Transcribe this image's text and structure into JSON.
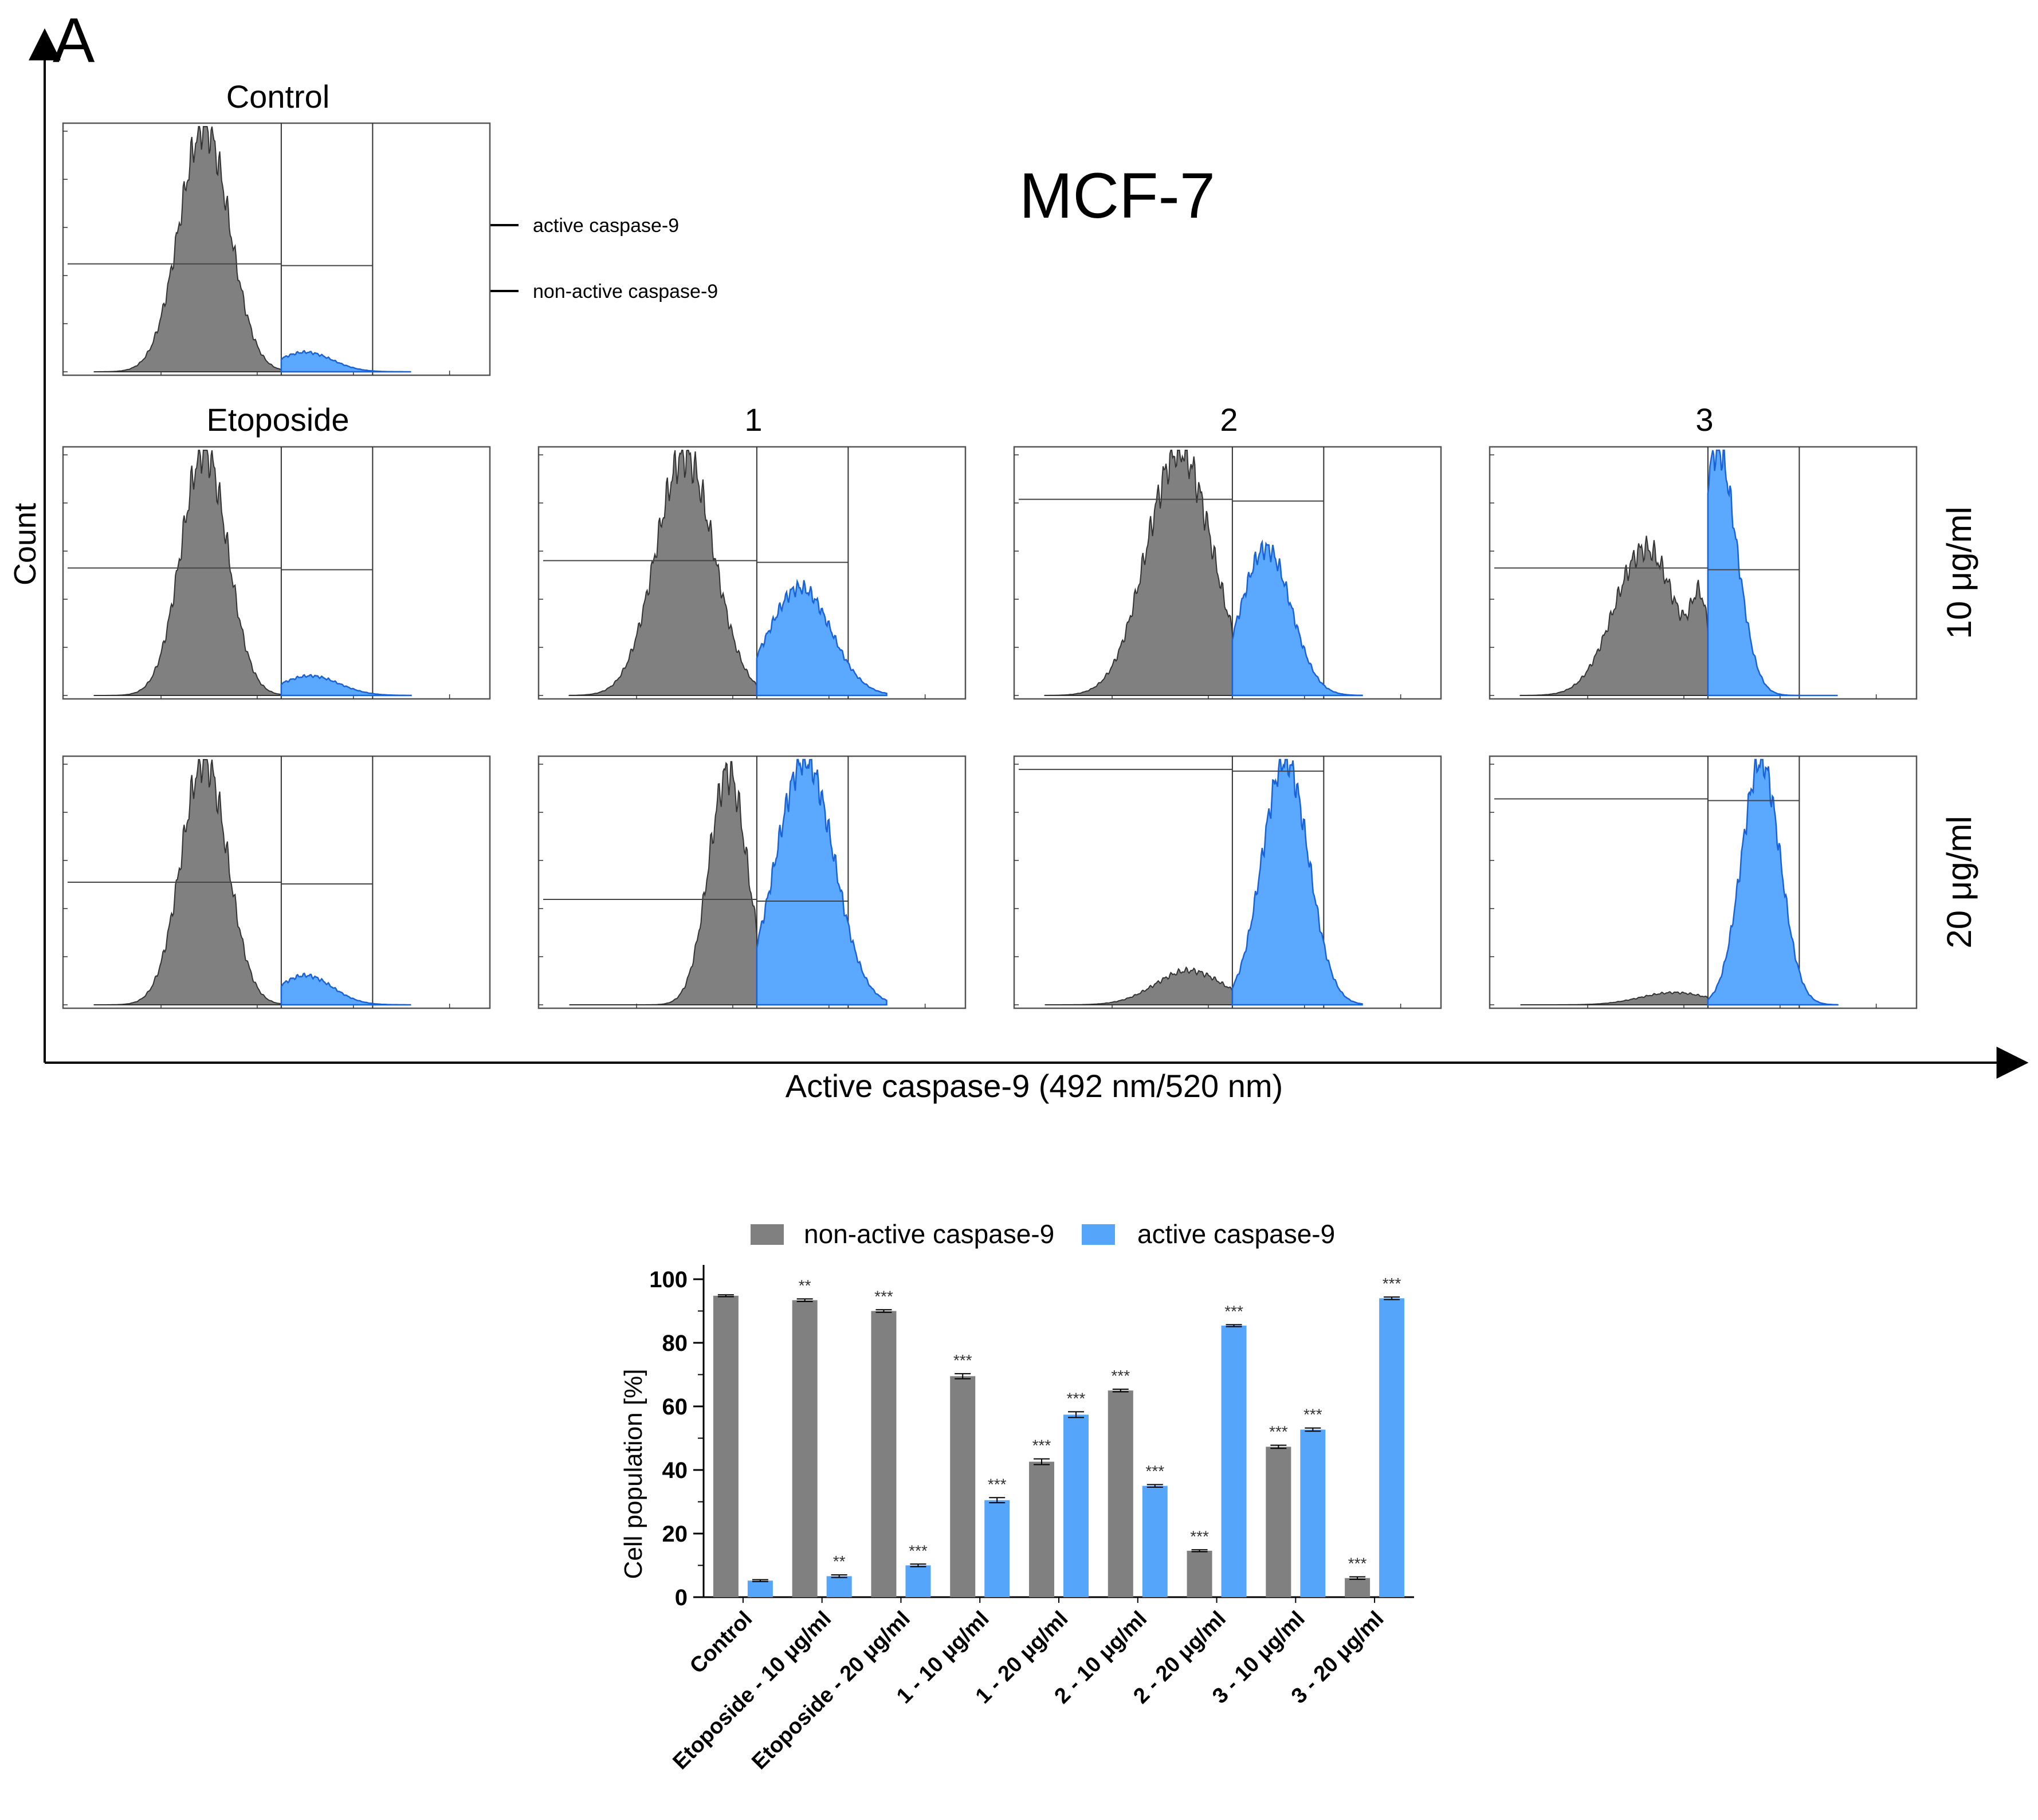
{
  "panel_label": "A",
  "cell_line": "MCF-7",
  "flow": {
    "y_axis_label": "Count",
    "x_axis_label": "Active caspase-9 (492 nm/520 nm)",
    "column_titles": [
      "Control",
      "Etoposide",
      "1",
      "2",
      "3"
    ],
    "row_labels": [
      "10 μg/ml",
      "20 μg/ml"
    ],
    "annotations": {
      "active": "active caspase-9",
      "nonactive": "non-active caspase-9"
    },
    "colors": {
      "negative": "#808080",
      "positive": "#5aa8ff",
      "positive_edge": "#1a63d6"
    },
    "histograms": [
      {
        "id": "control",
        "column": "Control",
        "dose": "",
        "neg_peak_log": 2.35,
        "neg_width": 0.26,
        "neg_height": 1.0,
        "neg_shoulder": 0.0,
        "pos_peak_log": 3.4,
        "pos_width": 0.28,
        "pos_height": 0.08,
        "gate_log": 3.15,
        "marker_level": 0.44
      },
      {
        "id": "etoposide-10",
        "column": "Etoposide",
        "dose": "10 μg/ml",
        "neg_peak_log": 2.35,
        "neg_width": 0.24,
        "neg_height": 1.0,
        "neg_shoulder": 0.0,
        "pos_peak_log": 3.45,
        "pos_width": 0.3,
        "pos_height": 0.08,
        "gate_log": 3.15,
        "marker_level": 0.52
      },
      {
        "id": "etoposide-20",
        "column": "Etoposide",
        "dose": "20 μg/ml",
        "neg_peak_log": 2.35,
        "neg_width": 0.24,
        "neg_height": 1.0,
        "neg_shoulder": 0.0,
        "pos_peak_log": 3.4,
        "pos_width": 0.28,
        "pos_height": 0.12,
        "gate_log": 3.15,
        "marker_level": 0.5
      },
      {
        "id": "cpd1-10",
        "column": "1",
        "dose": "10 μg/ml",
        "neg_peak_log": 2.4,
        "neg_width": 0.3,
        "neg_height": 0.98,
        "neg_shoulder": 0.0,
        "pos_peak_log": 3.6,
        "pos_width": 0.32,
        "pos_height": 0.44,
        "gate_log": 3.15,
        "marker_level": 0.55
      },
      {
        "id": "cpd1-20",
        "column": "1",
        "dose": "20 μg/ml",
        "neg_peak_log": 2.85,
        "neg_width": 0.2,
        "neg_height": 0.95,
        "neg_shoulder": 0.0,
        "pos_peak_log": 3.65,
        "pos_width": 0.3,
        "pos_height": 1.0,
        "gate_log": 3.15,
        "marker_level": 0.43
      },
      {
        "id": "cpd2-10",
        "column": "2",
        "dose": "10 μg/ml",
        "neg_peak_log": 2.6,
        "neg_width": 0.34,
        "neg_height": 1.0,
        "neg_shoulder": 0.0,
        "pos_peak_log": 3.5,
        "pos_width": 0.26,
        "pos_height": 0.6,
        "gate_log": 3.15,
        "marker_level": 0.8
      },
      {
        "id": "cpd2-20",
        "column": "2",
        "dose": "20 μg/ml",
        "neg_peak_log": 2.7,
        "neg_width": 0.35,
        "neg_height": 0.14,
        "neg_shoulder": 0.0,
        "pos_peak_log": 3.7,
        "pos_width": 0.24,
        "pos_height": 1.0,
        "gate_log": 3.15,
        "marker_level": 0.96
      },
      {
        "id": "cpd3-10",
        "column": "3",
        "dose": "10 μg/ml",
        "neg_peak_log": 2.5,
        "neg_width": 0.32,
        "neg_height": 0.6,
        "neg_shoulder": 0.3,
        "pos_peak_log": 3.25,
        "pos_width": 0.2,
        "pos_height": 1.0,
        "gate_log": 3.15,
        "marker_level": 0.52
      },
      {
        "id": "cpd3-20",
        "column": "3",
        "dose": "20 μg/ml",
        "neg_peak_log": 2.8,
        "neg_width": 0.35,
        "neg_height": 0.05,
        "neg_shoulder": 0.0,
        "pos_peak_log": 3.7,
        "pos_width": 0.2,
        "pos_height": 1.0,
        "gate_log": 3.15,
        "marker_level": 0.84
      }
    ]
  },
  "chart_data": {
    "type": "bar",
    "ylabel": "Cell population [%]",
    "xlabel": "",
    "ylim": [
      0,
      100
    ],
    "yticks": [
      0,
      20,
      40,
      60,
      80,
      100
    ],
    "categories": [
      "Control",
      "Etoposide - 10 μg/ml",
      "Etoposide - 20 μg/ml",
      "1 - 10 μg/ml",
      "1 - 20 μg/ml",
      "2 - 10 μg/ml",
      "2 - 20 μg/ml",
      "3 - 10 μg/ml",
      "3 - 20 μg/ml"
    ],
    "series": [
      {
        "name": "non-active caspase-9",
        "color": "#808080",
        "values": [
          94.8,
          93.4,
          90.0,
          69.5,
          42.6,
          65.0,
          14.6,
          47.3,
          6.0
        ],
        "errors": [
          0.3,
          0.4,
          0.4,
          0.8,
          0.9,
          0.4,
          0.3,
          0.5,
          0.4
        ],
        "significance": [
          "",
          "**",
          "***",
          "***",
          "***",
          "***",
          "***",
          "***",
          "***"
        ]
      },
      {
        "name": "active caspase-9",
        "color": "#55a6fa",
        "values": [
          5.2,
          6.6,
          10.0,
          30.5,
          57.4,
          35.0,
          85.4,
          52.7,
          94.0
        ],
        "errors": [
          0.3,
          0.4,
          0.4,
          0.8,
          0.9,
          0.4,
          0.3,
          0.5,
          0.4
        ],
        "significance": [
          "",
          "**",
          "***",
          "***",
          "***",
          "***",
          "***",
          "***",
          "***"
        ]
      }
    ],
    "legend_position": "top"
  }
}
